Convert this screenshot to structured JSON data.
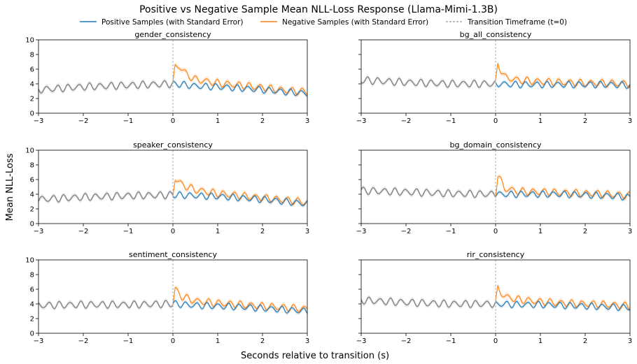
{
  "title": "Positive vs Negative Sample Mean NLL-Loss Response (Llama-Mimi-1.3B)",
  "legend": {
    "positive": "Positive Samples (with Standard Error)",
    "negative": "Negative Samples (with Standard Error)",
    "transition": "Transition Timeframe (t=0)"
  },
  "xlabel": "Seconds relative to transition (s)",
  "ylabel": "Mean NLL-Loss",
  "colors": {
    "positive": "#1f77b4",
    "negative": "#ff7f0e",
    "pre_transition": "#7f7f7f",
    "transition_line": "#b0b0b0"
  },
  "chart_data": [
    {
      "type": "line",
      "title": "gender_consistency",
      "xlim": [
        -3,
        3
      ],
      "ylim": [
        0,
        10
      ],
      "x_ticks": [
        "−3",
        "−2",
        "−1",
        "0",
        "1",
        "2",
        "3"
      ],
      "y_ticks": [
        "0",
        "2",
        "4",
        "6",
        "8",
        "10"
      ],
      "transition_x": 0,
      "series": [
        {
          "name": "Positive Samples (with Standard Error)",
          "x": [
            -3,
            -2,
            -1,
            0,
            0.05,
            0.5,
            1,
            1.5,
            2,
            2.5,
            3
          ],
          "y": [
            3.2,
            3.6,
            3.8,
            4.0,
            4.0,
            3.7,
            3.6,
            3.4,
            3.2,
            2.9,
            2.7
          ]
        },
        {
          "name": "Negative Samples (with Standard Error)",
          "x": [
            -3,
            -2,
            -1,
            0,
            0.05,
            0.15,
            0.3,
            0.5,
            1,
            1.5,
            2,
            2.5,
            3
          ],
          "y": [
            3.2,
            3.6,
            3.8,
            4.0,
            6.3,
            6.4,
            5.3,
            4.6,
            4.1,
            3.8,
            3.5,
            3.1,
            2.9
          ]
        }
      ]
    },
    {
      "type": "line",
      "title": "bg_all_consistency",
      "xlim": [
        -3,
        3
      ],
      "ylim": [
        0,
        10
      ],
      "x_ticks": [
        "−3",
        "−2",
        "−1",
        "0",
        "1",
        "2",
        "3"
      ],
      "y_ticks": [],
      "transition_x": 0,
      "series": [
        {
          "name": "Positive Samples (with Standard Error)",
          "x": [
            -3,
            -2,
            -1,
            0,
            0.05,
            0.5,
            1,
            1.5,
            2,
            2.5,
            3
          ],
          "y": [
            4.5,
            4.2,
            4.0,
            4.0,
            4.0,
            3.9,
            3.9,
            3.9,
            3.9,
            3.9,
            3.8
          ]
        },
        {
          "name": "Negative Samples (with Standard Error)",
          "x": [
            -3,
            -2,
            -1,
            0,
            0.05,
            0.2,
            0.5,
            1,
            1.5,
            2,
            2.5,
            3
          ],
          "y": [
            4.5,
            4.2,
            4.0,
            4.0,
            6.8,
            4.9,
            4.5,
            4.3,
            4.2,
            4.1,
            4.1,
            4.0
          ]
        }
      ]
    },
    {
      "type": "line",
      "title": "speaker_consistency",
      "xlim": [
        -3,
        3
      ],
      "ylim": [
        0,
        10
      ],
      "x_ticks": [
        "−3",
        "−2",
        "−1",
        "0",
        "1",
        "2",
        "3"
      ],
      "y_ticks": [
        "0",
        "2",
        "4",
        "6",
        "8",
        "10"
      ],
      "transition_x": 0,
      "series": [
        {
          "name": "Positive Samples (with Standard Error)",
          "x": [
            -3,
            -2,
            -1,
            0,
            0.05,
            0.5,
            1,
            1.5,
            2,
            2.5,
            3
          ],
          "y": [
            3.3,
            3.6,
            3.8,
            3.9,
            3.9,
            3.8,
            3.7,
            3.5,
            3.3,
            3.0,
            2.7
          ]
        },
        {
          "name": "Negative Samples (with Standard Error)",
          "x": [
            -3,
            -2,
            -1,
            0,
            0.05,
            0.2,
            0.5,
            1,
            1.5,
            2,
            2.5,
            3
          ],
          "y": [
            3.3,
            3.6,
            3.8,
            3.9,
            6.2,
            5.3,
            4.6,
            4.1,
            3.8,
            3.5,
            3.2,
            2.9
          ]
        }
      ]
    },
    {
      "type": "line",
      "title": "bg_domain_consistency",
      "xlim": [
        -3,
        3
      ],
      "ylim": [
        0,
        10
      ],
      "x_ticks": [
        "−3",
        "−2",
        "−1",
        "0",
        "1",
        "2",
        "3"
      ],
      "y_ticks": [],
      "transition_x": 0,
      "series": [
        {
          "name": "Positive Samples (with Standard Error)",
          "x": [
            -3,
            -2,
            -1,
            0,
            0.05,
            0.5,
            1,
            1.5,
            2,
            2.5,
            3
          ],
          "y": [
            4.5,
            4.3,
            4.1,
            4.0,
            4.0,
            4.0,
            4.0,
            4.0,
            3.9,
            3.8,
            3.6
          ]
        },
        {
          "name": "Negative Samples (with Standard Error)",
          "x": [
            -3,
            -2,
            -1,
            0,
            0.05,
            0.2,
            0.5,
            1,
            1.5,
            2,
            2.5,
            3
          ],
          "y": [
            4.5,
            4.3,
            4.1,
            4.0,
            6.6,
            4.8,
            4.4,
            4.3,
            4.2,
            4.1,
            4.0,
            3.8
          ]
        }
      ]
    },
    {
      "type": "line",
      "title": "sentiment_consistency",
      "xlim": [
        -3,
        3
      ],
      "ylim": [
        0,
        10
      ],
      "x_ticks": [
        "−3",
        "−2",
        "−1",
        "0",
        "1",
        "2",
        "3"
      ],
      "y_ticks": [
        "0",
        "2",
        "4",
        "6",
        "8",
        "10"
      ],
      "transition_x": 0,
      "series": [
        {
          "name": "Positive Samples (with Standard Error)",
          "x": [
            -3,
            -2,
            -1,
            0,
            0.05,
            0.5,
            1,
            1.5,
            2,
            2.5,
            3
          ],
          "y": [
            3.8,
            3.9,
            3.9,
            4.0,
            4.0,
            3.8,
            3.7,
            3.6,
            3.4,
            3.2,
            3.0
          ]
        },
        {
          "name": "Negative Samples (with Standard Error)",
          "x": [
            -3,
            -2,
            -1,
            0,
            0.05,
            0.2,
            0.5,
            1,
            1.5,
            2,
            2.5,
            3
          ],
          "y": [
            3.8,
            3.9,
            3.9,
            4.0,
            6.0,
            5.0,
            4.4,
            4.1,
            3.9,
            3.7,
            3.5,
            3.3
          ]
        }
      ]
    },
    {
      "type": "line",
      "title": "rir_consistency",
      "xlim": [
        -3,
        3
      ],
      "ylim": [
        0,
        10
      ],
      "x_ticks": [
        "−3",
        "−2",
        "−1",
        "0",
        "1",
        "2",
        "3"
      ],
      "y_ticks": [],
      "transition_x": 0,
      "series": [
        {
          "name": "Positive Samples (with Standard Error)",
          "x": [
            -3,
            -2,
            -1,
            0,
            0.05,
            0.5,
            1,
            1.5,
            2,
            2.5,
            3
          ],
          "y": [
            4.5,
            4.2,
            4.0,
            4.0,
            4.0,
            3.9,
            3.9,
            3.8,
            3.7,
            3.6,
            3.5
          ]
        },
        {
          "name": "Negative Samples (with Standard Error)",
          "x": [
            -3,
            -2,
            -1,
            0,
            0.05,
            0.2,
            0.5,
            1,
            1.5,
            2,
            2.5,
            3
          ],
          "y": [
            4.5,
            4.2,
            4.0,
            4.0,
            6.1,
            5.0,
            4.6,
            4.3,
            4.1,
            4.0,
            3.9,
            3.7
          ]
        }
      ]
    }
  ]
}
